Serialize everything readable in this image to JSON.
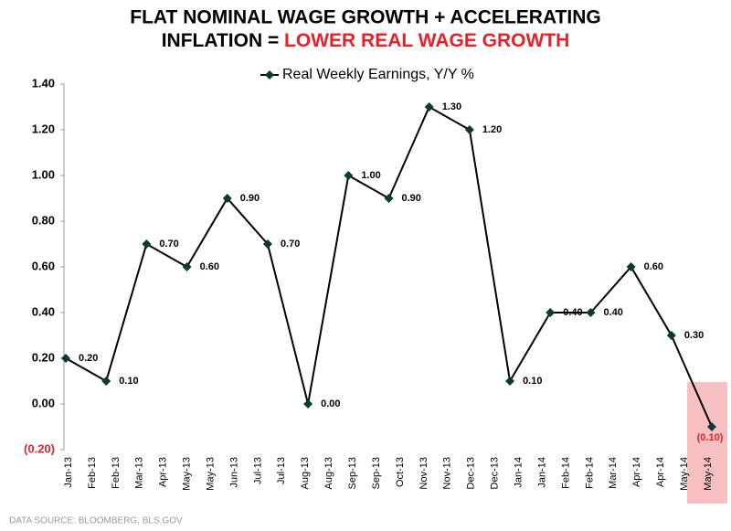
{
  "chart_data": {
    "type": "line",
    "title": "FLAT NOMINAL WAGE GROWTH + ACCELERATING",
    "title_line2": "INFLATION = ",
    "title_highlight": "LOWER REAL WAGE GROWTH",
    "source": "DATA SOURCE: BLOOMBERG, BLS.GOV",
    "x_tick_labels": [
      "Jan-13",
      "Feb-13",
      "Feb-13",
      "Mar-13",
      "Apr-13",
      "May-13",
      "May-13",
      "Jun-13",
      "Jul-13",
      "Jul-13",
      "Aug-13",
      "Aug-13",
      "Sep-13",
      "Sep-13",
      "Oct-13",
      "Nov-13",
      "Nov-13",
      "Dec-13",
      "Dec-13",
      "Jan-14",
      "Jan-14",
      "Feb-14",
      "Feb-14",
      "Mar-14",
      "Apr-14",
      "Apr-14",
      "May-14",
      "May-14"
    ],
    "series": [
      {
        "name": "Real Weekly Earnings, Y/Y %",
        "color": "#000000",
        "values": [
          0.2,
          0.1,
          0.7,
          0.6,
          0.9,
          0.7,
          0.0,
          1.0,
          0.9,
          1.3,
          1.2,
          0.1,
          0.4,
          0.4,
          0.6,
          0.3,
          -0.1
        ],
        "value_labels": [
          "0.20",
          "0.10",
          "0.70",
          "0.60",
          "0.90",
          "0.70",
          "0.00",
          "1.00",
          "0.90",
          "1.30",
          "1.20",
          "0.10",
          "0.40",
          "0.40",
          "0.60",
          "0.30",
          "(0.10)"
        ]
      }
    ],
    "ylim": [
      -0.2,
      1.4
    ],
    "yticks": [
      {
        "value": -0.2,
        "label": "(0.20)"
      },
      {
        "value": 0,
        "label": "0.00"
      },
      {
        "value": 0.2,
        "label": "0.20"
      },
      {
        "value": 0.4,
        "label": "0.40"
      },
      {
        "value": 0.6,
        "label": "0.60"
      },
      {
        "value": 0.8,
        "label": "0.80"
      },
      {
        "value": 1.0,
        "label": "1.00"
      },
      {
        "value": 1.2,
        "label": "1.20"
      },
      {
        "value": 1.4,
        "label": "1.40"
      }
    ],
    "grid": false,
    "legend": "top"
  }
}
